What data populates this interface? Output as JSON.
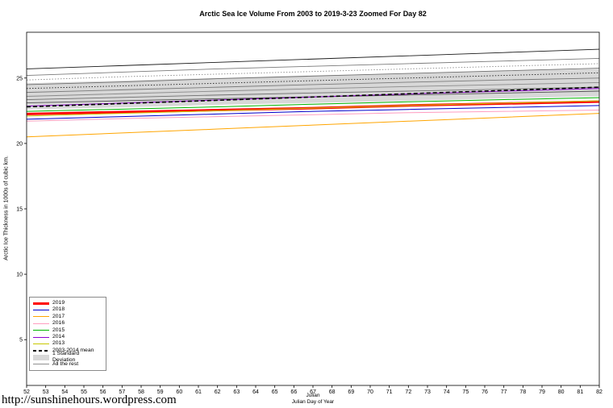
{
  "title": "Arctic Sea Ice Volume From 2003 to 2019-3-23 Zoomed For Day 82",
  "footer": {
    "url": "http://sunshinehours.wordpress.com"
  },
  "axes": {
    "ylabel": "Arctic Ice Thickness in 1000s of cubic km.",
    "xlabel_line1": "Julian",
    "xlabel_line2": "Julian Day of Year"
  },
  "chart_data": {
    "type": "line",
    "title": "Arctic Sea Ice Volume From 2003 to 2019-3-23 Zoomed For Day 82",
    "xlabel": "Julian Day of Year",
    "ylabel": "Arctic Ice Thickness in 1000s of cubic km.",
    "xlim": [
      52,
      82
    ],
    "ylim": [
      1.5,
      28.5
    ],
    "xticks": [
      52,
      53,
      54,
      55,
      56,
      57,
      58,
      59,
      60,
      61,
      62,
      63,
      64,
      65,
      66,
      67,
      68,
      69,
      70,
      71,
      72,
      73,
      74,
      75,
      76,
      77,
      78,
      79,
      80,
      81,
      82
    ],
    "yticks": [
      5,
      10,
      15,
      20,
      25
    ],
    "grid": false,
    "legend_position": "bottom-left",
    "x": [
      52,
      57,
      62,
      67,
      72,
      77,
      82
    ],
    "series": [
      {
        "name": "2019",
        "color": "#ff0000",
        "width": 3,
        "values": [
          22.25,
          22.4,
          22.55,
          22.7,
          22.9,
          23.05,
          23.2
        ]
      },
      {
        "name": "2018",
        "color": "#0000cd",
        "width": 1,
        "values": [
          21.85,
          22.05,
          22.25,
          22.45,
          22.6,
          22.75,
          22.9
        ]
      },
      {
        "name": "2017",
        "color": "#ffa500",
        "width": 1,
        "values": [
          20.5,
          20.8,
          21.1,
          21.4,
          21.7,
          22.0,
          22.3
        ]
      },
      {
        "name": "2016",
        "color": "#ff9dc0",
        "width": 1,
        "values": [
          21.7,
          21.9,
          22.05,
          22.2,
          22.35,
          22.45,
          22.55
        ]
      },
      {
        "name": "2015",
        "color": "#00b400",
        "width": 1,
        "values": [
          22.45,
          22.62,
          22.8,
          23.0,
          23.18,
          23.35,
          23.5
        ]
      },
      {
        "name": "2014",
        "color": "#8f00d0",
        "width": 1,
        "values": [
          22.85,
          23.08,
          23.32,
          23.55,
          23.78,
          24.0,
          24.2
        ]
      },
      {
        "name": "2013",
        "color": "#c8c800",
        "width": 1,
        "values": [
          22.1,
          22.3,
          22.5,
          22.7,
          22.9,
          23.08,
          23.25
        ]
      },
      {
        "name": "2003-2014 mean",
        "color": "#000000",
        "width": 1.6,
        "dash": "5,3",
        "values": [
          22.8,
          23.05,
          23.3,
          23.55,
          23.8,
          24.05,
          24.3
        ]
      }
    ],
    "std_band": {
      "label": "1 Standard Deviation",
      "color": "#d8d8d8",
      "lower": [
        22.6,
        22.75,
        22.95,
        23.1,
        23.25,
        23.45,
        23.6
      ],
      "upper": [
        24.6,
        24.8,
        25.0,
        25.2,
        25.35,
        25.55,
        25.7
      ]
    },
    "rest": {
      "label": "All the rest",
      "color": "#909090",
      "lines": [
        {
          "color": "#1a1a1a",
          "width": 0.9,
          "values": [
            25.7,
            25.95,
            26.2,
            26.45,
            26.7,
            26.95,
            27.2
          ]
        },
        {
          "color": "#7a7a7a",
          "width": 0.9,
          "values": [
            25.2,
            25.45,
            25.7,
            25.9,
            26.1,
            26.3,
            26.5
          ]
        },
        {
          "color": "#8a8a8a",
          "width": 0.9,
          "dash": "1.5,2",
          "values": [
            24.85,
            25.1,
            25.3,
            25.5,
            25.7,
            25.9,
            26.1
          ]
        },
        {
          "color": "#6f6f6f",
          "width": 0.9,
          "values": [
            24.5,
            24.7,
            24.95,
            25.15,
            25.35,
            25.55,
            25.75
          ]
        },
        {
          "color": "#222222",
          "width": 0.9,
          "dash": "1.5,2",
          "values": [
            24.2,
            24.4,
            24.6,
            24.8,
            25.0,
            25.2,
            25.4
          ]
        },
        {
          "color": "#7a7a7a",
          "width": 0.9,
          "values": [
            23.9,
            24.1,
            24.3,
            24.5,
            24.68,
            24.85,
            25.0
          ]
        },
        {
          "color": "#8a8a8a",
          "width": 0.9,
          "values": [
            23.6,
            23.8,
            24.0,
            24.18,
            24.35,
            24.5,
            24.65
          ]
        },
        {
          "color": "#6f6f6f",
          "width": 0.9,
          "values": [
            23.35,
            23.52,
            23.7,
            23.86,
            24.0,
            24.15,
            24.3
          ]
        },
        {
          "color": "#555555",
          "width": 0.9,
          "values": [
            23.1,
            23.26,
            23.42,
            23.56,
            23.7,
            23.85,
            24.0
          ]
        }
      ]
    },
    "legend": [
      {
        "label": "2019",
        "type": "line",
        "color": "#ff0000",
        "thick": 3
      },
      {
        "label": "2018",
        "type": "line",
        "color": "#0000cd",
        "thick": 1
      },
      {
        "label": "2017",
        "type": "line",
        "color": "#ffa500",
        "thick": 1
      },
      {
        "label": "2016",
        "type": "line",
        "color": "#ff9dc0",
        "thick": 1
      },
      {
        "label": "2015",
        "type": "line",
        "color": "#00b400",
        "thick": 1
      },
      {
        "label": "2014",
        "type": "line",
        "color": "#8f00d0",
        "thick": 1
      },
      {
        "label": "2013",
        "type": "line",
        "color": "#c8c800",
        "thick": 1
      },
      {
        "label": "2003-2014 mean",
        "type": "dashed",
        "color": "#000000",
        "thick": 2
      },
      {
        "label": "1 Standard Deviation",
        "type": "box",
        "color": "#d8d8d8"
      },
      {
        "label": "All the rest",
        "type": "line",
        "color": "#909090",
        "thick": 1
      }
    ]
  }
}
